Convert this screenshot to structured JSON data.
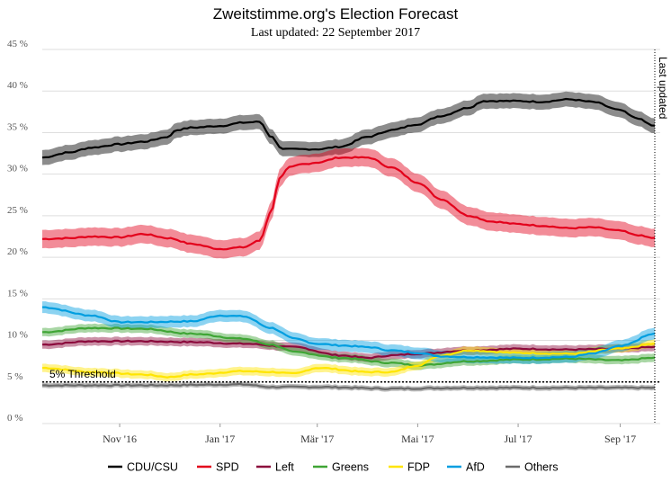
{
  "chart_data": {
    "type": "line",
    "title": "Zweitstimme.org's Election Forecast",
    "subtitle": "Last updated: 22 September 2017",
    "xlabel": "",
    "ylabel": "",
    "x_range": [
      "2016-09-15",
      "2017-09-22"
    ],
    "ylim": [
      0,
      45
    ],
    "y_ticks": [
      {
        "value": 0,
        "label": "0 %"
      },
      {
        "value": 5,
        "label": "5 %"
      },
      {
        "value": 10,
        "label": "10 %"
      },
      {
        "value": 15,
        "label": "15 %"
      },
      {
        "value": 20,
        "label": "20 %"
      },
      {
        "value": 25,
        "label": "25 %"
      },
      {
        "value": 30,
        "label": "30 %"
      },
      {
        "value": 35,
        "label": "35 %"
      },
      {
        "value": 40,
        "label": "40 %"
      },
      {
        "value": 45,
        "label": "45 %"
      }
    ],
    "x_ticks": [
      {
        "date": "2016-11-01",
        "label": "Nov '16"
      },
      {
        "date": "2017-01-01",
        "label": "Jan '17"
      },
      {
        "date": "2017-03-01",
        "label": "Mär '17"
      },
      {
        "date": "2017-05-01",
        "label": "Mai '17"
      },
      {
        "date": "2017-07-01",
        "label": "Jul '17"
      },
      {
        "date": "2017-09-01",
        "label": "Sep '17"
      }
    ],
    "grid": "horizontal",
    "legend_position": "bottom",
    "series": [
      {
        "name": "CDU/CSU",
        "color": "#000000",
        "band": 0.9,
        "points": [
          [
            "2016-09-15",
            32.0
          ],
          [
            "2016-10-01",
            32.6
          ],
          [
            "2016-10-15",
            33.2
          ],
          [
            "2016-11-01",
            33.6
          ],
          [
            "2016-11-15",
            33.9
          ],
          [
            "2016-12-01",
            34.5
          ],
          [
            "2016-12-05",
            35.3
          ],
          [
            "2016-12-15",
            35.6
          ],
          [
            "2017-01-01",
            35.8
          ],
          [
            "2017-01-15",
            36.2
          ],
          [
            "2017-01-25",
            36.3
          ],
          [
            "2017-02-01",
            34.5
          ],
          [
            "2017-02-08",
            33.0
          ],
          [
            "2017-02-15",
            33.0
          ],
          [
            "2017-03-01",
            33.0
          ],
          [
            "2017-03-15",
            33.3
          ],
          [
            "2017-04-01",
            34.5
          ],
          [
            "2017-04-15",
            35.3
          ],
          [
            "2017-05-01",
            36.0
          ],
          [
            "2017-05-15",
            37.0
          ],
          [
            "2017-06-01",
            38.0
          ],
          [
            "2017-06-10",
            38.8
          ],
          [
            "2017-07-01",
            38.8
          ],
          [
            "2017-07-15",
            38.7
          ],
          [
            "2017-08-01",
            39.0
          ],
          [
            "2017-08-15",
            38.7
          ],
          [
            "2017-09-01",
            37.7
          ],
          [
            "2017-09-10",
            36.8
          ],
          [
            "2017-09-22",
            35.8
          ]
        ]
      },
      {
        "name": "SPD",
        "color": "#e3001b",
        "band": 1.1,
        "points": [
          [
            "2016-09-15",
            22.2
          ],
          [
            "2016-10-01",
            22.3
          ],
          [
            "2016-10-15",
            22.5
          ],
          [
            "2016-11-01",
            22.4
          ],
          [
            "2016-11-15",
            22.8
          ],
          [
            "2016-12-01",
            22.3
          ],
          [
            "2016-12-15",
            21.6
          ],
          [
            "2017-01-01",
            21.0
          ],
          [
            "2017-01-15",
            21.2
          ],
          [
            "2017-01-25",
            22.0
          ],
          [
            "2017-02-01",
            25.5
          ],
          [
            "2017-02-06",
            29.5
          ],
          [
            "2017-02-12",
            30.8
          ],
          [
            "2017-02-20",
            31.2
          ],
          [
            "2017-03-01",
            31.4
          ],
          [
            "2017-03-15",
            32.0
          ],
          [
            "2017-04-01",
            32.0
          ],
          [
            "2017-04-15",
            30.8
          ],
          [
            "2017-05-01",
            29.0
          ],
          [
            "2017-05-15",
            27.0
          ],
          [
            "2017-06-01",
            25.0
          ],
          [
            "2017-06-15",
            24.3
          ],
          [
            "2017-07-01",
            24.0
          ],
          [
            "2017-07-15",
            23.8
          ],
          [
            "2017-08-01",
            23.5
          ],
          [
            "2017-08-15",
            23.6
          ],
          [
            "2017-09-01",
            23.2
          ],
          [
            "2017-09-10",
            22.7
          ],
          [
            "2017-09-22",
            22.3
          ]
        ]
      },
      {
        "name": "Left",
        "color": "#8b0a3c",
        "band": 0.5,
        "points": [
          [
            "2016-09-15",
            9.5
          ],
          [
            "2016-10-15",
            9.9
          ],
          [
            "2016-11-15",
            9.9
          ],
          [
            "2016-12-15",
            9.8
          ],
          [
            "2017-01-15",
            9.6
          ],
          [
            "2017-02-15",
            9.2
          ],
          [
            "2017-03-15",
            8.2
          ],
          [
            "2017-04-01",
            7.9
          ],
          [
            "2017-04-15",
            8.2
          ],
          [
            "2017-05-01",
            8.4
          ],
          [
            "2017-06-01",
            8.8
          ],
          [
            "2017-07-01",
            9.0
          ],
          [
            "2017-08-01",
            8.9
          ],
          [
            "2017-09-01",
            9.0
          ],
          [
            "2017-09-22",
            9.2
          ]
        ]
      },
      {
        "name": "Greens",
        "color": "#3fa535",
        "band": 0.5,
        "points": [
          [
            "2016-09-15",
            11.0
          ],
          [
            "2016-10-15",
            11.5
          ],
          [
            "2016-11-15",
            11.4
          ],
          [
            "2016-12-15",
            10.8
          ],
          [
            "2017-01-15",
            10.2
          ],
          [
            "2017-02-01",
            9.5
          ],
          [
            "2017-02-15",
            8.6
          ],
          [
            "2017-03-15",
            7.9
          ],
          [
            "2017-04-15",
            7.3
          ],
          [
            "2017-05-01",
            7.0
          ],
          [
            "2017-06-01",
            7.5
          ],
          [
            "2017-07-01",
            7.7
          ],
          [
            "2017-08-01",
            7.8
          ],
          [
            "2017-09-01",
            7.6
          ],
          [
            "2017-09-22",
            7.9
          ]
        ]
      },
      {
        "name": "FDP",
        "color": "#ffe500",
        "band": 0.5,
        "points": [
          [
            "2016-09-15",
            6.7
          ],
          [
            "2016-10-15",
            6.2
          ],
          [
            "2016-11-15",
            5.9
          ],
          [
            "2016-12-01",
            5.6
          ],
          [
            "2016-12-15",
            5.9
          ],
          [
            "2017-01-15",
            6.3
          ],
          [
            "2017-02-01",
            6.2
          ],
          [
            "2017-02-15",
            6.0
          ],
          [
            "2017-03-01",
            6.7
          ],
          [
            "2017-04-01",
            6.2
          ],
          [
            "2017-04-15",
            6.2
          ],
          [
            "2017-05-01",
            7.0
          ],
          [
            "2017-05-15",
            8.2
          ],
          [
            "2017-06-01",
            8.8
          ],
          [
            "2017-07-01",
            8.5
          ],
          [
            "2017-08-01",
            8.4
          ],
          [
            "2017-09-01",
            9.0
          ],
          [
            "2017-09-22",
            9.6
          ]
        ]
      },
      {
        "name": "AfD",
        "color": "#009ee0",
        "band": 0.7,
        "points": [
          [
            "2016-09-15",
            14.0
          ],
          [
            "2016-10-15",
            13.0
          ],
          [
            "2016-11-01",
            12.2
          ],
          [
            "2016-11-15",
            12.2
          ],
          [
            "2016-12-15",
            12.3
          ],
          [
            "2017-01-01",
            13.0
          ],
          [
            "2017-01-15",
            12.9
          ],
          [
            "2017-02-01",
            11.5
          ],
          [
            "2017-02-15",
            10.2
          ],
          [
            "2017-03-01",
            9.6
          ],
          [
            "2017-03-15",
            9.4
          ],
          [
            "2017-04-01",
            9.2
          ],
          [
            "2017-04-15",
            8.8
          ],
          [
            "2017-05-01",
            8.5
          ],
          [
            "2017-05-15",
            8.1
          ],
          [
            "2017-06-01",
            8.0
          ],
          [
            "2017-07-01",
            7.9
          ],
          [
            "2017-08-01",
            8.0
          ],
          [
            "2017-08-15",
            8.4
          ],
          [
            "2017-09-01",
            9.3
          ],
          [
            "2017-09-22",
            10.8
          ]
        ]
      },
      {
        "name": "Others",
        "color": "#6b6b6b",
        "band": 0.3,
        "points": [
          [
            "2016-09-15",
            4.6
          ],
          [
            "2016-11-15",
            4.6
          ],
          [
            "2017-01-15",
            4.7
          ],
          [
            "2017-02-01",
            4.4
          ],
          [
            "2017-03-01",
            4.4
          ],
          [
            "2017-04-15",
            4.2
          ],
          [
            "2017-06-01",
            4.3
          ],
          [
            "2017-07-15",
            4.3
          ],
          [
            "2017-09-22",
            4.3
          ]
        ]
      }
    ],
    "annotations": {
      "threshold_value": 5,
      "threshold_label": "5% Threshold",
      "last_updated_date": "2017-09-22",
      "last_updated_label": "Last updated"
    }
  }
}
